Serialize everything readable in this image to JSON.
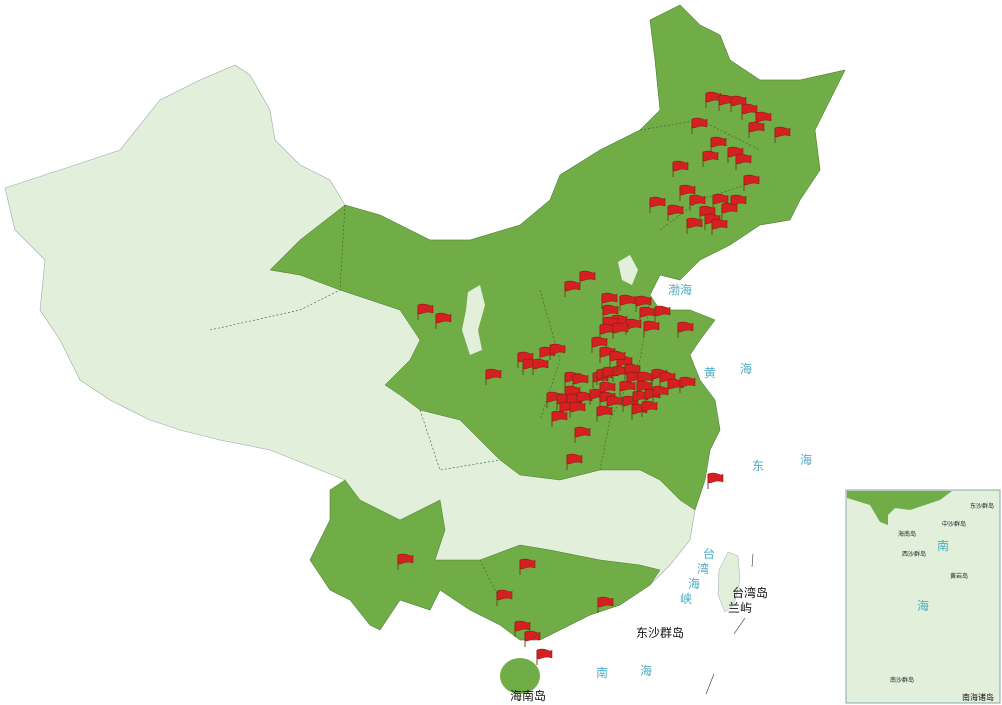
{
  "map": {
    "colors": {
      "highlighted_region": "#70ad47",
      "other_region": "#e2efda",
      "marker": "#d42020",
      "sea_label": "#4bacc6"
    },
    "marker_icon": "red-flag-icon",
    "sea_labels": {
      "bohai": [
        "渤",
        "海"
      ],
      "huanghai": [
        "黄",
        "海"
      ],
      "donghai": [
        "东",
        "海"
      ],
      "taiwan_strait": [
        "台",
        "湾",
        "海",
        "峡"
      ],
      "nanhai": [
        "南",
        "海"
      ]
    },
    "place_labels": {
      "taiwan": "台湾岛",
      "lanyu": "兰屿",
      "dongsha": "东沙群岛",
      "hainan": "海南岛"
    },
    "inset": {
      "title": "南海诸岛",
      "sea": [
        "南",
        "海"
      ],
      "labels": [
        "东沙群岛",
        "海南岛",
        "西沙群岛",
        "中沙群岛",
        "黄岩岛",
        "南沙群岛"
      ]
    }
  }
}
